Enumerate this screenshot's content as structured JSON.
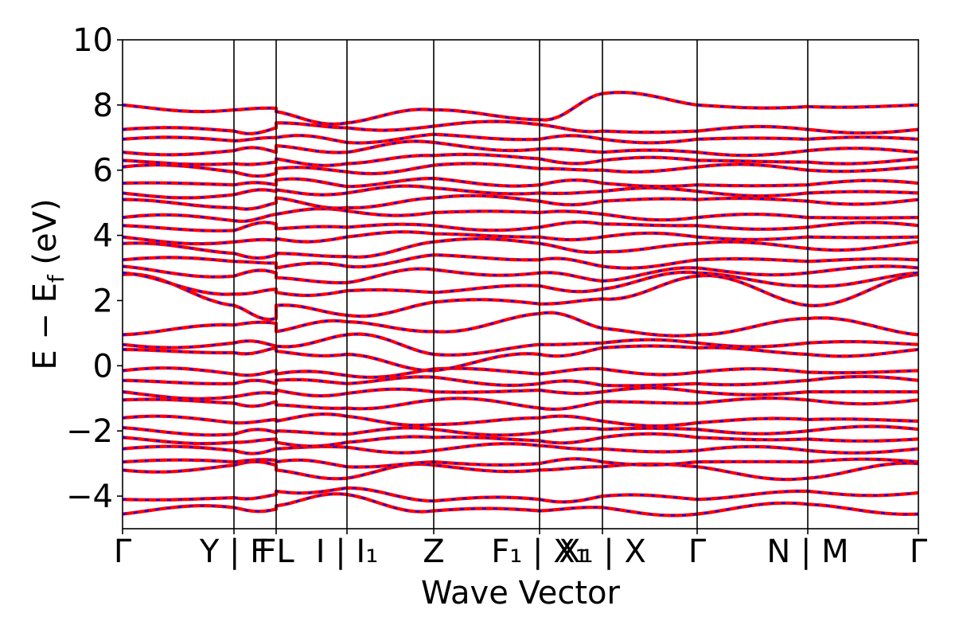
{
  "chart_data": {
    "type": "line",
    "title": "",
    "xlabel": "Wave Vector",
    "ylabel_parts": {
      "main": "E − E",
      "sub": "f",
      "unit": " (eV)"
    },
    "ylim": [
      -5,
      10
    ],
    "yticks": [
      -4,
      -2,
      0,
      2,
      4,
      6,
      8,
      10
    ],
    "ytick_labels": [
      "−4",
      "−2",
      "0",
      "2",
      "4",
      "6",
      "8",
      "10"
    ],
    "xlim": [
      0,
      1000
    ],
    "kpoints": [
      {
        "x": 0,
        "label": "Γ"
      },
      {
        "x": 140,
        "label": "Y | F"
      },
      {
        "x": 193,
        "label": "F"
      },
      {
        "x": 193,
        "label": "L"
      },
      {
        "x": 282,
        "label": "I | I1"
      },
      {
        "x": 391,
        "label": "Z"
      },
      {
        "x": 524,
        "label": "F1 | X1"
      },
      {
        "x": 603,
        "label": "X1 | X"
      },
      {
        "x": 722,
        "label": "Γ"
      },
      {
        "x": 861,
        "label": "N | M"
      },
      {
        "x": 1000,
        "label": "Γ"
      }
    ],
    "tick_text": [
      {
        "x": 0,
        "text": "Γ"
      },
      {
        "x": 140,
        "text": "Y | F"
      },
      {
        "x": 193,
        "text": "FL"
      },
      {
        "x": 282,
        "text": "I | I₁"
      },
      {
        "x": 391,
        "text": "Z"
      },
      {
        "x": 524,
        "text": "F₁ | X₁"
      },
      {
        "x": 603,
        "text": "X₁ | X"
      },
      {
        "x": 722,
        "text": "Γ"
      },
      {
        "x": 861,
        "text": "N | M"
      },
      {
        "x": 1000,
        "text": "Γ"
      }
    ],
    "series": [
      {
        "color": "#ff0000",
        "style": "solid"
      },
      {
        "color": "#0000ff",
        "style": "dashed"
      }
    ],
    "bands": [
      [
        -4.55,
        -4.35,
        -4.4,
        -4.3,
        -3.95,
        -4.45,
        -4.45,
        -4.35,
        -4.55,
        -4.25,
        -4.55
      ],
      [
        -4.1,
        -4.05,
        -3.95,
        -3.85,
        -3.75,
        -4.15,
        -4.1,
        -4.0,
        -4.1,
        -3.85,
        -3.9
      ],
      [
        -3.2,
        -3.05,
        -3.05,
        -3.2,
        -3.45,
        -3.05,
        -3.2,
        -3.1,
        -3.1,
        -3.45,
        -3.0
      ],
      [
        -2.95,
        -2.95,
        -2.9,
        -2.95,
        -3.1,
        -2.95,
        -3.0,
        -2.95,
        -2.95,
        -2.95,
        -2.95
      ],
      [
        -2.55,
        -2.6,
        -2.55,
        -2.55,
        -2.5,
        -2.6,
        -2.45,
        -2.55,
        -2.6,
        -2.6,
        -2.55
      ],
      [
        -2.2,
        -2.35,
        -2.25,
        -2.35,
        -2.35,
        -2.2,
        -2.3,
        -2.2,
        -2.2,
        -2.25,
        -2.25
      ],
      [
        -1.9,
        -2.1,
        -2.05,
        -2.0,
        -2.1,
        -1.95,
        -2.05,
        -1.95,
        -1.95,
        -2.0,
        -1.95
      ],
      [
        -1.6,
        -1.75,
        -1.65,
        -1.7,
        -1.55,
        -1.8,
        -1.6,
        -1.7,
        -1.75,
        -1.65,
        -1.7
      ],
      [
        -1.05,
        -1.15,
        -1.1,
        -1.2,
        -1.3,
        -1.05,
        -1.3,
        -1.1,
        -1.15,
        -1.05,
        -1.05
      ],
      [
        -0.8,
        -0.95,
        -0.85,
        -0.75,
        -0.85,
        -0.8,
        -0.75,
        -0.8,
        -0.8,
        -0.8,
        -0.8
      ],
      [
        -0.45,
        -0.55,
        -0.55,
        -0.45,
        -0.55,
        -0.35,
        -0.55,
        -0.6,
        -0.55,
        -0.45,
        -0.45
      ],
      [
        -0.15,
        -0.25,
        -0.15,
        -0.25,
        -0.3,
        -0.1,
        -0.25,
        -0.1,
        -0.2,
        -0.2,
        -0.15
      ],
      [
        0.5,
        0.4,
        0.55,
        0.45,
        0.35,
        -0.15,
        0.35,
        0.55,
        0.55,
        0.35,
        0.5
      ],
      [
        0.65,
        0.7,
        0.6,
        0.6,
        0.95,
        0.35,
        0.65,
        0.7,
        0.7,
        0.7,
        0.65
      ],
      [
        0.95,
        1.25,
        1.3,
        1.05,
        1.35,
        1.05,
        1.6,
        1.15,
        0.95,
        1.45,
        0.95
      ],
      [
        2.8,
        1.85,
        1.45,
        1.85,
        1.55,
        1.95,
        1.9,
        2.05,
        2.75,
        1.85,
        2.8
      ],
      [
        2.85,
        2.2,
        2.35,
        2.25,
        2.3,
        2.25,
        2.45,
        2.35,
        2.85,
        2.45,
        2.85
      ],
      [
        3.05,
        2.75,
        2.85,
        2.7,
        2.55,
        2.95,
        2.85,
        2.6,
        3.0,
        2.85,
        3.0
      ],
      [
        3.25,
        3.2,
        3.15,
        3.0,
        3.05,
        3.4,
        3.25,
        3.05,
        3.25,
        3.2,
        3.25
      ],
      [
        3.75,
        3.45,
        3.4,
        3.45,
        3.35,
        3.8,
        3.75,
        3.5,
        3.75,
        3.6,
        3.8
      ],
      [
        3.95,
        3.8,
        3.85,
        3.9,
        3.95,
        4.05,
        3.95,
        3.95,
        3.95,
        3.95,
        3.95
      ],
      [
        4.3,
        4.15,
        4.35,
        4.2,
        4.25,
        4.3,
        4.25,
        4.35,
        4.3,
        4.25,
        4.3
      ],
      [
        4.55,
        4.45,
        4.65,
        4.65,
        4.75,
        4.7,
        4.7,
        4.65,
        4.55,
        4.55,
        4.55
      ],
      [
        5.1,
        4.85,
        5.0,
        5.15,
        4.85,
        5.15,
        5.05,
        5.05,
        5.1,
        5.05,
        5.1
      ],
      [
        5.3,
        5.25,
        5.35,
        5.4,
        5.3,
        5.45,
        5.3,
        5.35,
        5.35,
        5.3,
        5.3
      ],
      [
        5.6,
        5.55,
        5.55,
        5.7,
        5.5,
        5.75,
        5.55,
        5.6,
        5.55,
        5.55,
        5.6
      ],
      [
        6.1,
        5.95,
        5.9,
        6.05,
        5.95,
        6.15,
        6.05,
        6.0,
        6.1,
        6.0,
        6.1
      ],
      [
        6.3,
        6.2,
        6.25,
        6.35,
        6.2,
        6.45,
        6.35,
        6.3,
        6.3,
        6.25,
        6.35
      ],
      [
        6.55,
        6.6,
        6.55,
        6.75,
        6.55,
        6.85,
        6.65,
        6.55,
        6.55,
        6.6,
        6.55
      ],
      [
        6.95,
        6.9,
        7.0,
        7.0,
        6.85,
        7.1,
        6.95,
        6.95,
        6.95,
        6.95,
        6.95
      ],
      [
        7.25,
        7.2,
        7.3,
        7.45,
        7.3,
        7.35,
        7.4,
        7.2,
        7.2,
        7.25,
        7.25
      ],
      [
        8.0,
        7.85,
        7.9,
        7.8,
        7.45,
        7.85,
        7.55,
        8.35,
        8.0,
        7.95,
        8.0
      ]
    ]
  }
}
